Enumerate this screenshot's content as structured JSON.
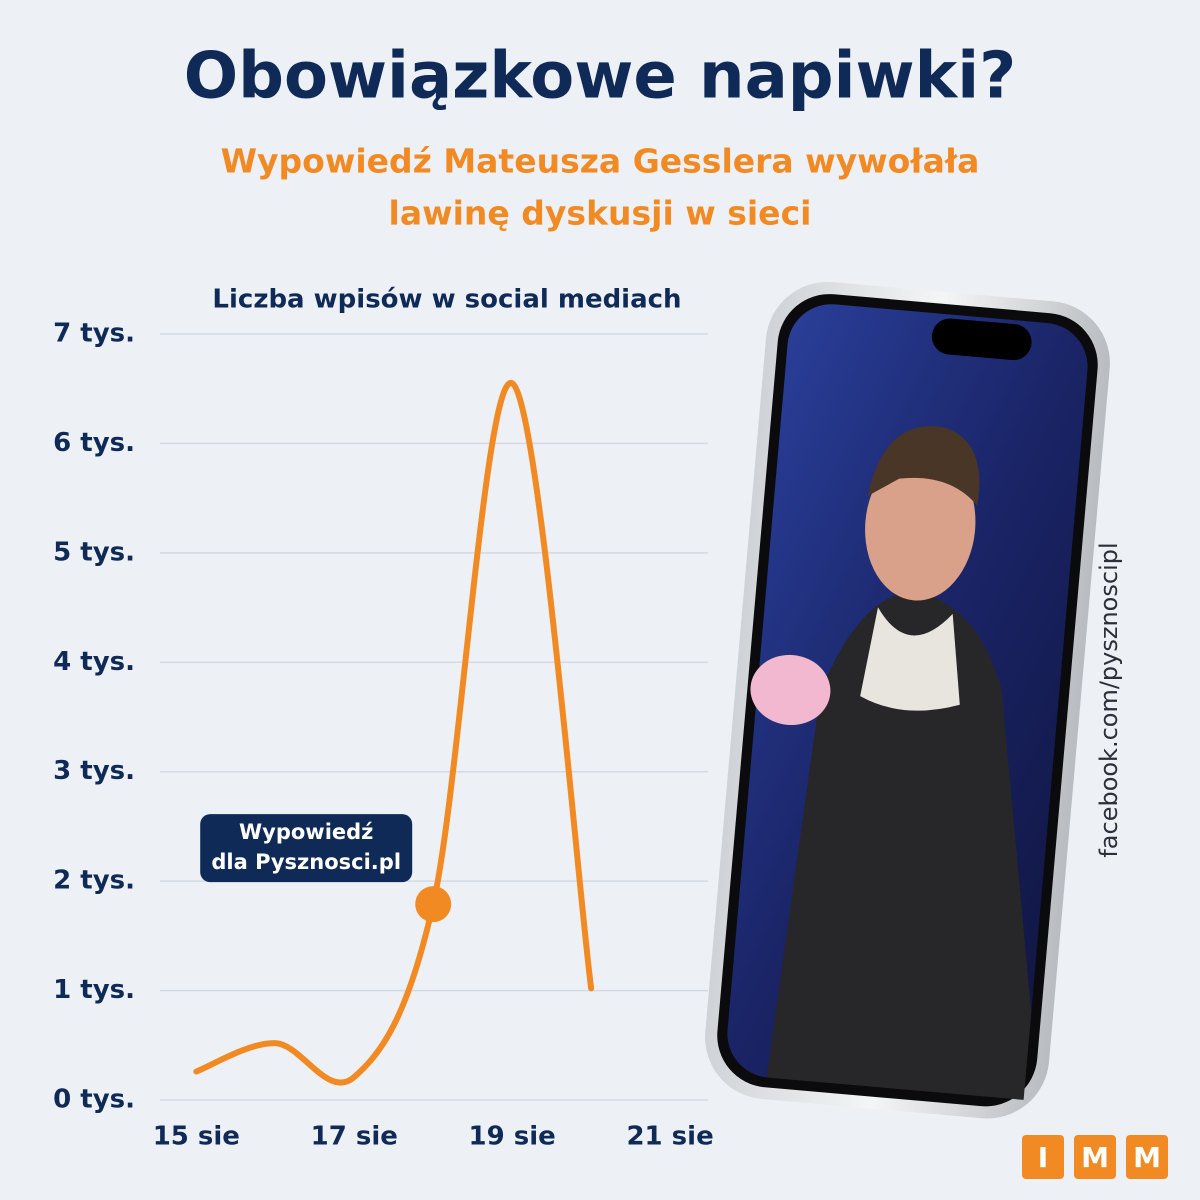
{
  "title": "Obowiązkowe napiwki?",
  "subtitle": [
    "Wypowiedź Mateusza Gesslera wywołała",
    "lawinę dyskusji w sieci"
  ],
  "credit": "facebook.com/pysznoscipl",
  "logo": [
    "I",
    "M",
    "M"
  ],
  "chart_data": {
    "type": "line",
    "title": "Liczba wpisów w social mediach",
    "x": [
      15,
      16,
      17,
      18,
      19,
      20
    ],
    "values": [
      0.26,
      0.52,
      0.21,
      1.79,
      6.55,
      1.02
    ],
    "color": "#f28a24",
    "xlim": [
      14.54,
      21.48
    ],
    "xticks": [
      {
        "value": 15,
        "label": "15 sie"
      },
      {
        "value": 17,
        "label": "17 sie"
      },
      {
        "value": 19,
        "label": "19 sie"
      },
      {
        "value": 21,
        "label": "21 sie"
      }
    ],
    "ylim": [
      0,
      7
    ],
    "yticks": [
      {
        "value": 0,
        "label": "0 tys."
      },
      {
        "value": 1,
        "label": "1 tys."
      },
      {
        "value": 2,
        "label": "2 tys."
      },
      {
        "value": 3,
        "label": "3 tys."
      },
      {
        "value": 4,
        "label": "4 tys."
      },
      {
        "value": 5,
        "label": "5 tys."
      },
      {
        "value": 6,
        "label": "6 tys."
      },
      {
        "value": 7,
        "label": "7 tys."
      }
    ],
    "grid": true,
    "annotation": {
      "x": 18,
      "text": [
        "Wypowiedź",
        "dla Pysznosci.pl"
      ]
    }
  }
}
